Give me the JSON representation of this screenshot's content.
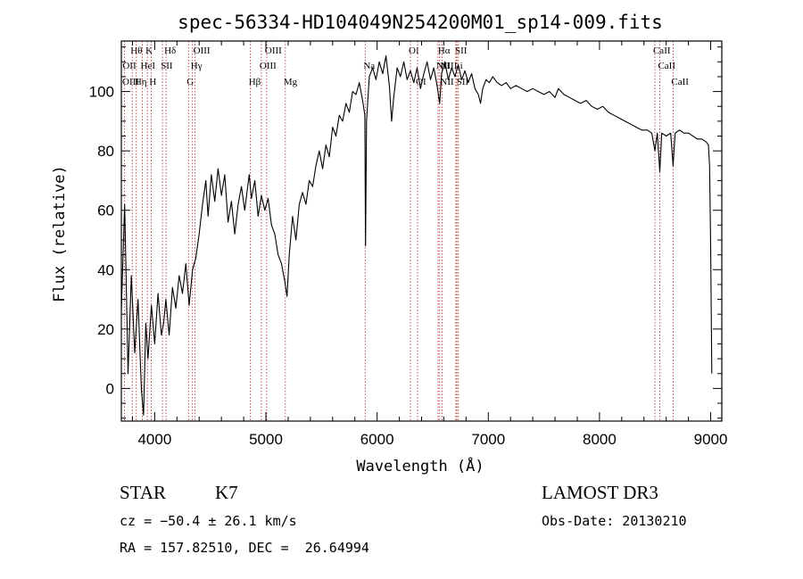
{
  "chart_data": {
    "type": "line",
    "title": "spec-56334-HD104049N254200M01_sp14-009.fits",
    "xlabel": "Wavelength (Å)",
    "ylabel": "Flux (relative)",
    "xlim": [
      3700,
      9100
    ],
    "ylim": [
      -11,
      117
    ],
    "xticks": [
      4000,
      5000,
      6000,
      7000,
      8000,
      9000
    ],
    "yticks": [
      0,
      20,
      40,
      60,
      80,
      100
    ],
    "series": [
      {
        "name": "flux",
        "points": [
          [
            3700,
            26
          ],
          [
            3730,
            62
          ],
          [
            3760,
            5
          ],
          [
            3790,
            38
          ],
          [
            3820,
            12
          ],
          [
            3850,
            30
          ],
          [
            3880,
            0
          ],
          [
            3900,
            -9
          ],
          [
            3920,
            22
          ],
          [
            3940,
            10
          ],
          [
            3970,
            28
          ],
          [
            4000,
            15
          ],
          [
            4030,
            32
          ],
          [
            4060,
            18
          ],
          [
            4080,
            22
          ],
          [
            4100,
            30
          ],
          [
            4130,
            18
          ],
          [
            4160,
            34
          ],
          [
            4190,
            27
          ],
          [
            4220,
            38
          ],
          [
            4250,
            32
          ],
          [
            4280,
            42
          ],
          [
            4310,
            28
          ],
          [
            4340,
            40
          ],
          [
            4370,
            44
          ],
          [
            4400,
            52
          ],
          [
            4430,
            62
          ],
          [
            4460,
            70
          ],
          [
            4480,
            58
          ],
          [
            4510,
            72
          ],
          [
            4540,
            63
          ],
          [
            4570,
            74
          ],
          [
            4600,
            65
          ],
          [
            4630,
            72
          ],
          [
            4660,
            56
          ],
          [
            4690,
            63
          ],
          [
            4720,
            52
          ],
          [
            4750,
            62
          ],
          [
            4780,
            68
          ],
          [
            4810,
            60
          ],
          [
            4850,
            72
          ],
          [
            4870,
            64
          ],
          [
            4900,
            70
          ],
          [
            4930,
            58
          ],
          [
            4960,
            65
          ],
          [
            4990,
            60
          ],
          [
            5020,
            64
          ],
          [
            5050,
            55
          ],
          [
            5080,
            52
          ],
          [
            5110,
            45
          ],
          [
            5140,
            42
          ],
          [
            5170,
            36
          ],
          [
            5190,
            31
          ],
          [
            5210,
            45
          ],
          [
            5240,
            58
          ],
          [
            5270,
            50
          ],
          [
            5300,
            62
          ],
          [
            5330,
            66
          ],
          [
            5360,
            62
          ],
          [
            5390,
            70
          ],
          [
            5420,
            68
          ],
          [
            5450,
            75
          ],
          [
            5480,
            80
          ],
          [
            5510,
            74
          ],
          [
            5540,
            82
          ],
          [
            5570,
            78
          ],
          [
            5600,
            88
          ],
          [
            5630,
            85
          ],
          [
            5660,
            92
          ],
          [
            5690,
            90
          ],
          [
            5720,
            96
          ],
          [
            5750,
            93
          ],
          [
            5780,
            100
          ],
          [
            5810,
            99
          ],
          [
            5840,
            103
          ],
          [
            5870,
            97
          ],
          [
            5890,
            92
          ],
          [
            5896,
            48
          ],
          [
            5905,
            90
          ],
          [
            5930,
            105
          ],
          [
            5960,
            108
          ],
          [
            5990,
            104
          ],
          [
            6020,
            110
          ],
          [
            6050,
            106
          ],
          [
            6080,
            112
          ],
          [
            6110,
            102
          ],
          [
            6130,
            90
          ],
          [
            6150,
            98
          ],
          [
            6180,
            108
          ],
          [
            6210,
            105
          ],
          [
            6240,
            110
          ],
          [
            6270,
            104
          ],
          [
            6300,
            107
          ],
          [
            6330,
            103
          ],
          [
            6360,
            108
          ],
          [
            6390,
            101
          ],
          [
            6420,
            106
          ],
          [
            6450,
            110
          ],
          [
            6480,
            104
          ],
          [
            6510,
            108
          ],
          [
            6540,
            102
          ],
          [
            6563,
            96
          ],
          [
            6580,
            106
          ],
          [
            6610,
            110
          ],
          [
            6640,
            104
          ],
          [
            6670,
            108
          ],
          [
            6700,
            105
          ],
          [
            6730,
            109
          ],
          [
            6760,
            104
          ],
          [
            6790,
            107
          ],
          [
            6820,
            103
          ],
          [
            6850,
            106
          ],
          [
            6880,
            101
          ],
          [
            6910,
            99
          ],
          [
            6930,
            96
          ],
          [
            6950,
            101
          ],
          [
            6980,
            104
          ],
          [
            7010,
            103
          ],
          [
            7040,
            105
          ],
          [
            7080,
            103
          ],
          [
            7120,
            102
          ],
          [
            7160,
            103
          ],
          [
            7200,
            101
          ],
          [
            7250,
            102
          ],
          [
            7300,
            101
          ],
          [
            7350,
            100
          ],
          [
            7400,
            101
          ],
          [
            7450,
            100
          ],
          [
            7500,
            99
          ],
          [
            7550,
            100
          ],
          [
            7600,
            98
          ],
          [
            7630,
            101
          ],
          [
            7680,
            99
          ],
          [
            7730,
            98
          ],
          [
            7780,
            97
          ],
          [
            7830,
            96
          ],
          [
            7880,
            97
          ],
          [
            7930,
            95
          ],
          [
            7980,
            94
          ],
          [
            8030,
            95
          ],
          [
            8080,
            93
          ],
          [
            8130,
            92
          ],
          [
            8180,
            91
          ],
          [
            8230,
            90
          ],
          [
            8280,
            89
          ],
          [
            8330,
            88
          ],
          [
            8380,
            87
          ],
          [
            8430,
            87
          ],
          [
            8470,
            86
          ],
          [
            8498,
            80
          ],
          [
            8520,
            86
          ],
          [
            8542,
            73
          ],
          [
            8560,
            86
          ],
          [
            8600,
            85
          ],
          [
            8640,
            86
          ],
          [
            8662,
            75
          ],
          [
            8680,
            86
          ],
          [
            8720,
            87
          ],
          [
            8760,
            86
          ],
          [
            8800,
            86
          ],
          [
            8840,
            85
          ],
          [
            8880,
            84
          ],
          [
            8920,
            84
          ],
          [
            8960,
            83
          ],
          [
            8980,
            82
          ],
          [
            8990,
            75
          ],
          [
            9000,
            48
          ],
          [
            9010,
            5
          ]
        ]
      }
    ],
    "line_markers": [
      {
        "label": "Hθ",
        "x": 3798,
        "row": 0
      },
      {
        "label": "K",
        "x": 3934,
        "row": 0
      },
      {
        "label": "Hδ",
        "x": 4102,
        "row": 0
      },
      {
        "label": "OIII",
        "x": 4363,
        "row": 0
      },
      {
        "label": "OIII",
        "x": 5007,
        "row": 0
      },
      {
        "label": "OI",
        "x": 6300,
        "row": 0
      },
      {
        "label": "Hα",
        "x": 6563,
        "row": 0
      },
      {
        "label": "SII",
        "x": 6717,
        "row": 0
      },
      {
        "label": "CaII",
        "x": 8498,
        "row": 0
      },
      {
        "label": "OII",
        "x": 3727,
        "row": 1
      },
      {
        "label": "HeI",
        "x": 3889,
        "row": 1
      },
      {
        "label": "SII",
        "x": 4070,
        "row": 1
      },
      {
        "label": "Hγ",
        "x": 4340,
        "row": 1
      },
      {
        "label": "OIII",
        "x": 4959,
        "row": 1
      },
      {
        "label": "Na",
        "x": 5893,
        "row": 1
      },
      {
        "label": "NII",
        "x": 6548,
        "row": 1
      },
      {
        "label": "NII",
        "x": 6584,
        "row": 1
      },
      {
        "label": "Li",
        "x": 6708,
        "row": 1
      },
      {
        "label": "CaII",
        "x": 8542,
        "row": 1
      },
      {
        "label": "OIII",
        "x": 3700,
        "row": 2
      },
      {
        "label": "Hη",
        "x": 3835,
        "row": 2
      },
      {
        "label": "H",
        "x": 3968,
        "row": 2
      },
      {
        "label": "G",
        "x": 4304,
        "row": 2
      },
      {
        "label": "Hβ",
        "x": 4861,
        "row": 2
      },
      {
        "label": "Mg",
        "x": 5175,
        "row": 2
      },
      {
        "label": "OI",
        "x": 6364,
        "row": 2
      },
      {
        "label": "NII",
        "x": 6584,
        "row": 2
      },
      {
        "label": "SII",
        "x": 6731,
        "row": 2
      },
      {
        "label": "CaII",
        "x": 8662,
        "row": 2
      }
    ]
  },
  "info": {
    "object_type": "STAR",
    "subclass": "K7",
    "survey": "LAMOST DR3",
    "cz": "cz = −50.4 ± 26.1 km/s",
    "obs_date": "Obs-Date: 20130210",
    "coords": "RA = 157.82510, DEC =  26.64994"
  },
  "colors": {
    "axes": "#000000",
    "spectrum": "#000000",
    "marker_line": "#b22222",
    "background": "#ffffff"
  }
}
